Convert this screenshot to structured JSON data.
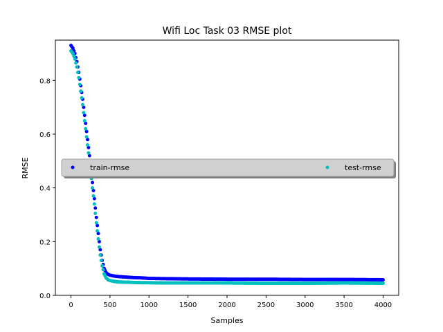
{
  "chart_data": {
    "type": "scatter",
    "title": "Wifi Loc Task 03 RMSE plot",
    "xlabel": "Samples",
    "ylabel": "RMSE",
    "xlim": [
      -200,
      4200
    ],
    "ylim": [
      0.0,
      0.95
    ],
    "xticks": [
      0,
      500,
      1000,
      1500,
      2000,
      2500,
      3000,
      3500,
      4000
    ],
    "yticks": [
      0.0,
      0.2,
      0.4,
      0.6,
      0.8
    ],
    "ytick_labels": [
      "0.0",
      "0.2",
      "0.4",
      "0.6",
      "0.8"
    ],
    "grid": false,
    "legend": {
      "placement": "center",
      "entries": [
        "train-rmse",
        "test-rmse"
      ]
    },
    "series": [
      {
        "name": "train-rmse",
        "color": "#0000ff",
        "x": [
          0,
          25,
          50,
          75,
          100,
          125,
          150,
          175,
          200,
          225,
          250,
          275,
          300,
          325,
          350,
          375,
          400,
          425,
          450,
          475,
          500,
          550,
          600,
          700,
          800,
          900,
          1000,
          1200,
          1500,
          2000,
          2500,
          3000,
          3500,
          4000
        ],
        "y": [
          0.93,
          0.92,
          0.9,
          0.87,
          0.83,
          0.78,
          0.73,
          0.67,
          0.61,
          0.55,
          0.49,
          0.42,
          0.36,
          0.29,
          0.23,
          0.17,
          0.13,
          0.1,
          0.085,
          0.078,
          0.075,
          0.072,
          0.07,
          0.068,
          0.066,
          0.065,
          0.063,
          0.062,
          0.061,
          0.06,
          0.06,
          0.059,
          0.059,
          0.058
        ]
      },
      {
        "name": "test-rmse",
        "color": "#00bfbf",
        "x": [
          0,
          25,
          50,
          75,
          100,
          125,
          150,
          175,
          200,
          225,
          250,
          275,
          300,
          325,
          350,
          375,
          400,
          425,
          450,
          475,
          500,
          550,
          600,
          700,
          800,
          900,
          1000,
          1200,
          1500,
          2000,
          2500,
          3000,
          3500,
          4000
        ],
        "y": [
          0.91,
          0.9,
          0.88,
          0.85,
          0.81,
          0.76,
          0.71,
          0.65,
          0.59,
          0.53,
          0.47,
          0.4,
          0.34,
          0.27,
          0.21,
          0.15,
          0.11,
          0.08,
          0.065,
          0.058,
          0.055,
          0.052,
          0.05,
          0.049,
          0.048,
          0.047,
          0.047,
          0.046,
          0.046,
          0.046,
          0.045,
          0.045,
          0.046,
          0.045
        ]
      }
    ]
  }
}
